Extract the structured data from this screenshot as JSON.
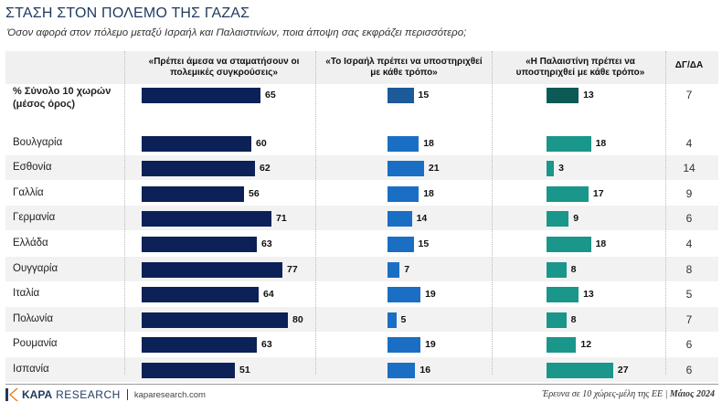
{
  "title": "ΣΤΑΣΗ ΣΤΟΝ ΠΟΛΕΜΟ ΤΗΣ ΓΑΖΑΣ",
  "subtitle": "Όσον αφορά στον πόλεμο μεταξύ Ισραήλ και Παλαιστινίων, ποια άποψη σας εκφράζει περισσότερο;",
  "columns": {
    "c1": "«Πρέπει άμεσα να σταματήσουν οι πολεμικές συγκρούσεις»",
    "c2": "«Το Ισραήλ πρέπει να υποστηριχθεί με κάθε τρόπο»",
    "c3": "«Η Παλαιστίνη πρέπει να υποστηριχθεί με κάθε τρόπο»",
    "dkda": "ΔΓ/ΔΑ"
  },
  "colors": {
    "stop_fighting": "#0b2157",
    "support_israel": "#1a6fc4",
    "support_palestine": "#1a968a",
    "total_support_israel": "#1c5a9a",
    "total_support_palestine": "#0c5a55"
  },
  "chart_data": {
    "type": "bar",
    "orientation": "horizontal",
    "title": "ΣΤΑΣΗ ΣΤΟΝ ΠΟΛΕΜΟ ΤΗΣ ΓΑΖΑΣ",
    "categories": [
      "% Σύνολο 10 χωρών (μέσος όρος)",
      "Βουλγαρία",
      "Εσθονία",
      "Γαλλία",
      "Γερμανία",
      "Ελλάδα",
      "Ουγγαρία",
      "Ιταλία",
      "Πολωνία",
      "Ρουμανία",
      "Ισπανία"
    ],
    "series": [
      {
        "name": "«Πρέπει άμεσα να σταματήσουν οι πολεμικές συγκρούσεις»",
        "values": [
          65,
          60,
          62,
          56,
          71,
          63,
          77,
          64,
          80,
          63,
          51
        ]
      },
      {
        "name": "«Το Ισραήλ πρέπει να υποστηριχθεί με κάθε τρόπο»",
        "values": [
          15,
          18,
          21,
          18,
          14,
          15,
          7,
          19,
          5,
          19,
          16
        ]
      },
      {
        "name": "«Η Παλαιστίνη πρέπει να υποστηριχθεί με κάθε τρόπο»",
        "values": [
          13,
          18,
          3,
          17,
          9,
          18,
          8,
          13,
          8,
          12,
          27
        ]
      },
      {
        "name": "ΔΓ/ΔΑ",
        "values": [
          7,
          4,
          14,
          9,
          6,
          4,
          8,
          5,
          7,
          6,
          6
        ]
      }
    ],
    "ylim": [
      0,
      100
    ],
    "grid": false,
    "legend": "top"
  },
  "footer": {
    "brand_kapa": "KAPA",
    "brand_research": "RESEARCH",
    "url": "kaparesearch.com",
    "survey_note": "Έρευνα σε 10 χώρες-μέλη της ΕΕ",
    "survey_date": "Μάιος 2024"
  }
}
